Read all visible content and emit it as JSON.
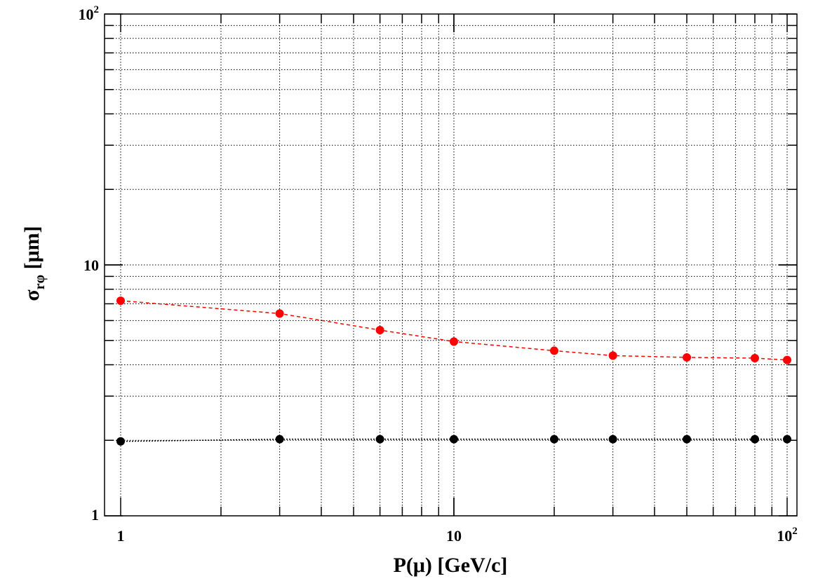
{
  "chart_data": {
    "type": "scatter",
    "xlabel": "P(μ) [GeV/c]",
    "ylabel_main": "σ",
    "ylabel_sub": "rφ",
    "ylabel_unit": " [μm]",
    "xscale": "log",
    "yscale": "log",
    "xlim": [
      1,
      100
    ],
    "ylim": [
      1,
      100
    ],
    "grid": true,
    "x_ticks": [
      {
        "value": 1,
        "label": "1"
      },
      {
        "value": 10,
        "label": "10"
      },
      {
        "value": 100,
        "label": "10",
        "exp": "2"
      }
    ],
    "y_ticks": [
      {
        "value": 1,
        "label": "1"
      },
      {
        "value": 10,
        "label": "10"
      },
      {
        "value": 100,
        "label": "10",
        "exp": "2"
      }
    ],
    "series": [
      {
        "color": "#ff0000",
        "line_style": "dashed",
        "x": [
          1,
          3,
          6,
          10,
          20,
          30,
          50,
          80,
          100
        ],
        "y": [
          7.2,
          6.4,
          5.5,
          4.95,
          4.55,
          4.35,
          4.28,
          4.25,
          4.18
        ]
      },
      {
        "color": "#000000",
        "line_style": "dotted",
        "x": [
          1,
          3,
          6,
          10,
          20,
          30,
          50,
          80,
          100
        ],
        "y": [
          1.98,
          2.02,
          2.02,
          2.02,
          2.02,
          2.02,
          2.02,
          2.02,
          2.02
        ]
      }
    ]
  }
}
